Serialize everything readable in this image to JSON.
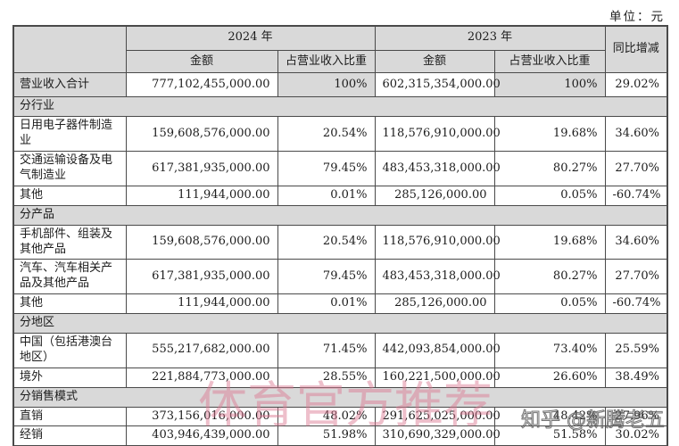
{
  "page": {
    "unit_label": "单位：元"
  },
  "table": {
    "headers": {
      "year_2024": "2024 年",
      "year_2023": "2023 年",
      "yoy": "同比增减",
      "amount": "金额",
      "share": "占营业收入比重"
    },
    "rows": [
      {
        "type": "data",
        "variant": "total",
        "label": "营业收入合计",
        "a2024": "777,102,455,000.00",
        "s2024": "100%",
        "a2023": "602,315,354,000.00",
        "s2023": "100%",
        "yoy": "29.02%"
      },
      {
        "type": "section",
        "label": "分行业"
      },
      {
        "type": "data",
        "label": "日用电子器件制造业",
        "a2024": "159,608,576,000.00",
        "s2024": "20.54%",
        "a2023": "118,576,910,000.00",
        "s2023": "19.68%",
        "yoy": "34.60%"
      },
      {
        "type": "data",
        "label": "交通运输设备及电气制造业",
        "a2024": "617,381,935,000.00",
        "s2024": "79.45%",
        "a2023": "483,453,318,000.00",
        "s2023": "80.27%",
        "yoy": "27.70%"
      },
      {
        "type": "data",
        "label": "其他",
        "a2024": "111,944,000.00",
        "s2024": "0.01%",
        "a2023": "285,126,000.00",
        "s2023": "0.05%",
        "yoy": "-60.74%"
      },
      {
        "type": "section",
        "label": "分产品"
      },
      {
        "type": "data",
        "label": "手机部件、组装及其他产品",
        "a2024": "159,608,576,000.00",
        "s2024": "20.54%",
        "a2023": "118,576,910,000.00",
        "s2023": "19.68%",
        "yoy": "34.60%"
      },
      {
        "type": "data",
        "label": "汽车、汽车相关产品及其他产品",
        "a2024": "617,381,935,000.00",
        "s2024": "79.45%",
        "a2023": "483,453,318,000.00",
        "s2023": "80.27%",
        "yoy": "27.70%"
      },
      {
        "type": "data",
        "label": "其他",
        "a2024": "111,944,000.00",
        "s2024": "0.01%",
        "a2023": "285,126,000.00",
        "s2023": "0.05%",
        "yoy": "-60.74%"
      },
      {
        "type": "section",
        "label": "分地区"
      },
      {
        "type": "data",
        "label": "中国（包括港澳台地区）",
        "a2024": "555,217,682,000.00",
        "s2024": "71.45%",
        "a2023": "442,093,854,000.00",
        "s2023": "73.40%",
        "yoy": "25.59%"
      },
      {
        "type": "data",
        "label": "境外",
        "a2024": "221,884,773,000.00",
        "s2024": "28.55%",
        "a2023": "160,221,500,000.00",
        "s2023": "26.60%",
        "yoy": "38.49%"
      },
      {
        "type": "section",
        "label": "分销售模式"
      },
      {
        "type": "data",
        "label": "直销",
        "a2024": "373,156,016,000.00",
        "s2024": "48.02%",
        "a2023": "291,625,025,000.00",
        "s2023": "48.42%",
        "yoy": "27.96%"
      },
      {
        "type": "data",
        "label": "经销",
        "a2024": "403,946,439,000.00",
        "s2024": "51.98%",
        "a2023": "310,690,329,000.00",
        "s2023": "51.58%",
        "yoy": "30.02%"
      }
    ]
  },
  "watermarks": {
    "center": {
      "text": "体育官方推荐",
      "color": "#db7a92"
    },
    "zhihu": {
      "text": "知乎 @新腾老五",
      "color": "#5f5f5f"
    }
  },
  "colors": {
    "header_bg": "#d9d9d9",
    "cell_bg": "#ffffff",
    "border": "#4a4a4a"
  }
}
